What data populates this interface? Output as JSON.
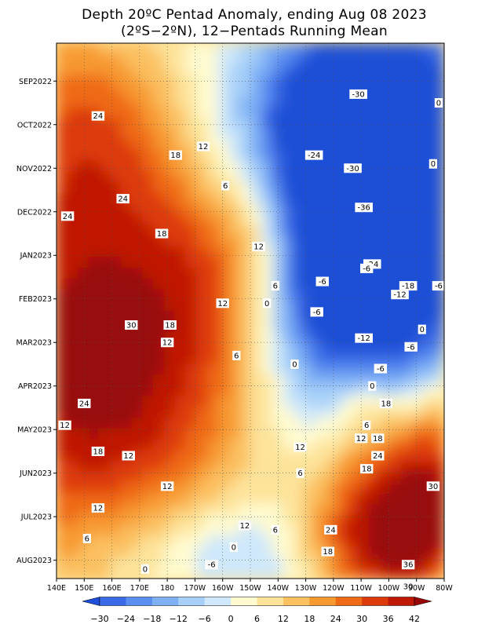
{
  "chart_data": {
    "type": "heatmap",
    "title": "Depth 20ºC Pentad Anomaly, ending Aug 08 2023",
    "subtitle": "(2ºS−2ºN), 12−Pentads Running Mean",
    "xlabel": "",
    "ylabel": "",
    "x_ticks": [
      "140E",
      "150E",
      "160E",
      "170E",
      "180",
      "170W",
      "160W",
      "150W",
      "140W",
      "130W",
      "120W",
      "110W",
      "100W",
      "90W",
      "80W"
    ],
    "y_ticks": [
      "SEP2022",
      "OCT2022",
      "NOV2022",
      "DEC2022",
      "JAN2023",
      "FEB2023",
      "MAR2023",
      "APR2023",
      "MAY2023",
      "JUN2023",
      "JUL2023",
      "AUG2023"
    ],
    "colorbar": {
      "ticks": [
        "−30",
        "−24",
        "−18",
        "−12",
        "−6",
        "0",
        "6",
        "12",
        "18",
        "24",
        "30",
        "36",
        "42"
      ],
      "colors": [
        "#1e4fd6",
        "#3a6ae6",
        "#5a8ef0",
        "#7fb0f5",
        "#a7d0f8",
        "#cfe8fb",
        "#fffbd0",
        "#fde39a",
        "#fbc060",
        "#f79a30",
        "#ef6a14",
        "#dd3a0a",
        "#c01806",
        "#980808"
      ]
    },
    "contour_labels": [
      {
        "text": "24",
        "lon": 155,
        "month": 0.8
      },
      {
        "text": "18",
        "lon": 183,
        "month": 1.7
      },
      {
        "text": "12",
        "lon": 193,
        "month": 1.5
      },
      {
        "text": "6",
        "lon": 201,
        "month": 2.4
      },
      {
        "text": "24",
        "lon": 164,
        "month": 2.7
      },
      {
        "text": "24",
        "lon": 144,
        "month": 3.1
      },
      {
        "text": "18",
        "lon": 178,
        "month": 3.5
      },
      {
        "text": "12",
        "lon": 213,
        "month": 3.8
      },
      {
        "text": "6",
        "lon": 219,
        "month": 4.7
      },
      {
        "text": "12",
        "lon": 200,
        "month": 5.1
      },
      {
        "text": "0",
        "lon": 216,
        "month": 5.1
      },
      {
        "text": "18",
        "lon": 181,
        "month": 5.6
      },
      {
        "text": "30",
        "lon": 167,
        "month": 5.6
      },
      {
        "text": "12",
        "lon": 180,
        "month": 6.0
      },
      {
        "text": "6",
        "lon": 205,
        "month": 6.3
      },
      {
        "text": "0",
        "lon": 226,
        "month": 6.5
      },
      {
        "text": "-30",
        "lon": 249,
        "month": 0.3
      },
      {
        "text": "-24",
        "lon": 233,
        "month": 1.7
      },
      {
        "text": "-30",
        "lon": 247,
        "month": 2.0
      },
      {
        "text": "-36",
        "lon": 251,
        "month": 2.9
      },
      {
        "text": "-24",
        "lon": 254,
        "month": 4.2
      },
      {
        "text": "-6",
        "lon": 252,
        "month": 4.3
      },
      {
        "text": "-6",
        "lon": 236,
        "month": 4.6
      },
      {
        "text": "-18",
        "lon": 267,
        "month": 4.7
      },
      {
        "text": "-12",
        "lon": 264,
        "month": 4.9
      },
      {
        "text": "-6",
        "lon": 278,
        "month": 4.7
      },
      {
        "text": "-6",
        "lon": 234,
        "month": 5.3
      },
      {
        "text": "-12",
        "lon": 251,
        "month": 5.9
      },
      {
        "text": "0",
        "lon": 272,
        "month": 5.7
      },
      {
        "text": "-6",
        "lon": 268,
        "month": 6.1
      },
      {
        "text": "-6",
        "lon": 257,
        "month": 6.6
      },
      {
        "text": "0",
        "lon": 278,
        "month": 0.5
      },
      {
        "text": "0",
        "lon": 276,
        "month": 1.9
      },
      {
        "text": "24",
        "lon": 150,
        "month": 7.4
      },
      {
        "text": "12",
        "lon": 143,
        "month": 7.9
      },
      {
        "text": "18",
        "lon": 155,
        "month": 8.5
      },
      {
        "text": "12",
        "lon": 166,
        "month": 8.6
      },
      {
        "text": "12",
        "lon": 228,
        "month": 8.4
      },
      {
        "text": "0",
        "lon": 254,
        "month": 7.0
      },
      {
        "text": "18",
        "lon": 259,
        "month": 7.4
      },
      {
        "text": "6",
        "lon": 252,
        "month": 7.9
      },
      {
        "text": "12",
        "lon": 250,
        "month": 8.2
      },
      {
        "text": "18",
        "lon": 256,
        "month": 8.2
      },
      {
        "text": "24",
        "lon": 256,
        "month": 8.6
      },
      {
        "text": "18",
        "lon": 252,
        "month": 8.9
      },
      {
        "text": "30",
        "lon": 276,
        "month": 9.3
      },
      {
        "text": "12",
        "lon": 180,
        "month": 9.3
      },
      {
        "text": "6",
        "lon": 228,
        "month": 9.0
      },
      {
        "text": "12",
        "lon": 155,
        "month": 9.8
      },
      {
        "text": "12",
        "lon": 208,
        "month": 10.2
      },
      {
        "text": "6",
        "lon": 219,
        "month": 10.3
      },
      {
        "text": "6",
        "lon": 151,
        "month": 10.5
      },
      {
        "text": "24",
        "lon": 239,
        "month": 10.3
      },
      {
        "text": "18",
        "lon": 238,
        "month": 10.8
      },
      {
        "text": "0",
        "lon": 204,
        "month": 10.7
      },
      {
        "text": "0",
        "lon": 172,
        "month": 11.2
      },
      {
        "text": "-6",
        "lon": 196,
        "month": 11.1
      },
      {
        "text": "36",
        "lon": 267,
        "month": 11.1
      },
      {
        "text": "30",
        "lon": 267,
        "month": 11.6
      }
    ]
  }
}
